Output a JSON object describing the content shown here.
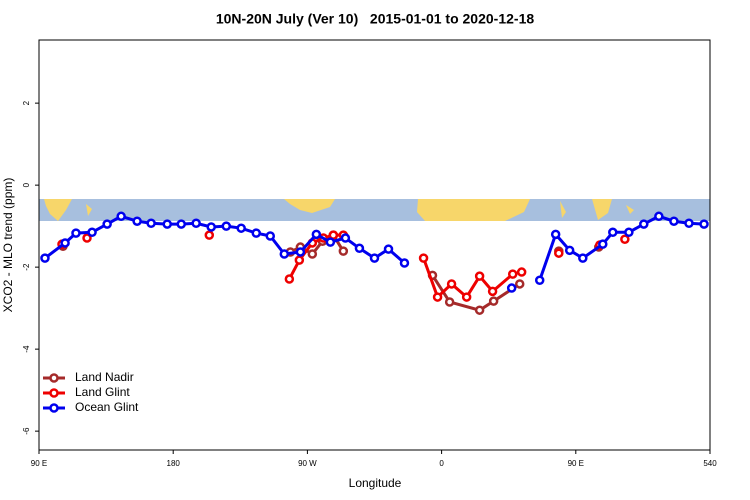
{
  "chart_data": {
    "type": "line",
    "title": "10N-20N July (Ver 10)   2015-01-01 to 2020-12-18",
    "x_label": "Longitude",
    "y_label": "XCO2 - MLO trend (ppm)",
    "xlim": [
      90,
      540
    ],
    "ylim": [
      -6.46,
      3.54
    ],
    "xticks": [
      {
        "value": 90,
        "label": "90 E"
      },
      180,
      {
        "value": 270,
        "label": "90 W"
      },
      {
        "value": 360,
        "label": "0"
      },
      {
        "value": 450,
        "label": "90 E"
      },
      540
    ],
    "yticks": [
      -6,
      -4,
      -2,
      0,
      2
    ],
    "legend": "bottom-left",
    "series": [
      {
        "name": "Land Nadir",
        "color": "#a52a2a",
        "x": [
          106.1,
          null,
          258.6,
          265.3,
          273.3,
          280.1,
          287.4,
          294.1,
          null,
          353.9,
          365.4,
          385.5,
          394.9,
          412.4,
          null,
          438.6,
          null,
          465.4
        ],
        "values": [
          -1.49,
          null,
          -1.63,
          -1.51,
          -1.68,
          -1.37,
          -1.22,
          -1.61,
          null,
          -2.2,
          -2.85,
          -3.05,
          -2.83,
          -2.41,
          null,
          -1.61,
          null,
          -1.51
        ]
      },
      {
        "name": "Land Glint",
        "color": "#ee0000",
        "x": [
          105.4,
          null,
          122.2,
          null,
          204.2,
          null,
          257.9,
          264.6,
          273.3,
          280.7,
          287.4,
          294.1,
          null,
          347.9,
          357.3,
          366.7,
          376.8,
          385.5,
          394.2,
          407.7,
          413.7,
          null,
          438.6,
          null,
          466.1,
          null,
          482.9
        ],
        "values": [
          -1.44,
          null,
          -1.29,
          null,
          -1.22,
          null,
          -2.29,
          -1.83,
          -1.41,
          -1.29,
          -1.22,
          -1.22,
          null,
          -1.78,
          -2.73,
          -2.41,
          -2.73,
          -2.22,
          -2.59,
          -2.17,
          -2.12,
          null,
          -1.66,
          null,
          -1.46,
          null,
          -1.32
        ]
      },
      {
        "name": "Ocean Glint",
        "color": "#0000ee",
        "x": [
          94.0,
          107.5,
          114.8,
          125.6,
          135.7,
          145.1,
          155.8,
          165.2,
          176.0,
          185.4,
          195.4,
          205.5,
          215.6,
          225.6,
          235.7,
          245.1,
          254.5,
          265.3,
          276.0,
          285.4,
          295.5,
          304.9,
          315.0,
          324.4,
          335.1,
          null,
          407.0,
          null,
          425.8,
          436.5,
          445.9,
          454.7,
          468.1,
          474.8,
          485.6,
          495.6,
          505.7,
          515.8,
          525.9,
          536.0
        ],
        "values": [
          -1.78,
          -1.41,
          -1.17,
          -1.15,
          -0.95,
          -0.76,
          -0.88,
          -0.93,
          -0.95,
          -0.95,
          -0.93,
          -1.02,
          -1.0,
          -1.05,
          -1.17,
          -1.24,
          -1.68,
          -1.63,
          -1.2,
          -1.39,
          -1.29,
          -1.54,
          -1.78,
          -1.56,
          -1.9,
          null,
          -2.51,
          null,
          -2.32,
          -1.2,
          -1.59,
          -1.78,
          -1.44,
          -1.15,
          -1.15,
          -0.95,
          -0.76,
          -0.88,
          -0.93,
          -0.95
        ]
      }
    ]
  }
}
